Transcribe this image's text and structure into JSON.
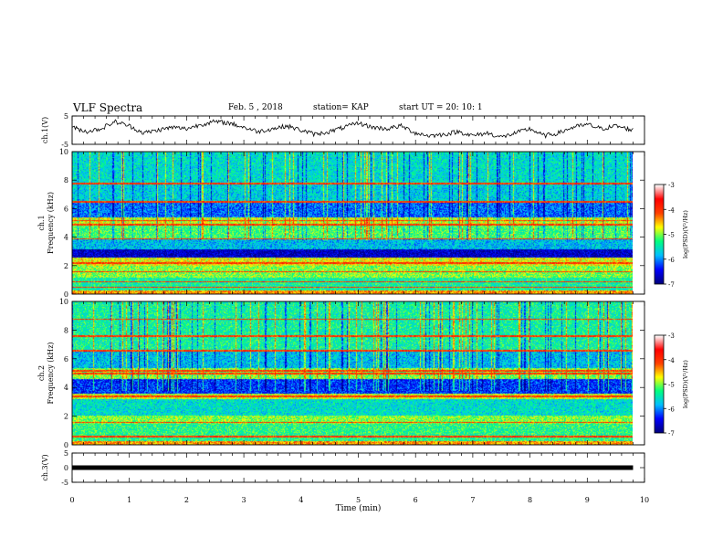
{
  "header": {
    "title": "VLF Spectra",
    "date": "Feb. 5 , 2018",
    "station": "station= KAP",
    "start": "start UT =  20: 10: 1"
  },
  "chart_data": [
    {
      "type": "line",
      "panel": "ch1-waveform",
      "ylabel": "ch.1(V)",
      "ylim": [
        -5,
        5
      ],
      "yticks": [
        5,
        -5
      ],
      "x_range_min": [
        0,
        10
      ],
      "data_extent_min": [
        0,
        9.8
      ],
      "series_color": "#000000",
      "series": [
        {
          "x": [
            0,
            0.25,
            0.5,
            0.75,
            1,
            1.25,
            1.5,
            1.75,
            2,
            2.25,
            2.5,
            2.75,
            3,
            3.25,
            3.5,
            3.75,
            4,
            4.25,
            4.5,
            4.75,
            5,
            5.25,
            5.5,
            5.75,
            6,
            6.25,
            6.5,
            6.75,
            7,
            7.25,
            7.5,
            7.75,
            8,
            8.25,
            8.5,
            8.75,
            9,
            9.25,
            9.5,
            9.8
          ],
          "y": [
            1.0,
            -0.5,
            0.5,
            3.0,
            1.5,
            -1.0,
            0.0,
            1.0,
            0.5,
            2.0,
            3.0,
            2.5,
            1.0,
            -0.5,
            0.5,
            1.5,
            0.0,
            -1.5,
            -0.5,
            1.0,
            2.5,
            1.0,
            0.5,
            1.5,
            -1.0,
            -2.0,
            -1.5,
            -0.5,
            -2.0,
            -1.0,
            -2.5,
            -1.0,
            0.5,
            -2.0,
            -1.0,
            1.0,
            2.0,
            0.5,
            1.5,
            0.0
          ]
        }
      ]
    },
    {
      "type": "heatmap",
      "panel": "ch1-spectrogram",
      "ylabel": "ch.1",
      "ylabel2": "Frequency (kHz)",
      "ylim": [
        0,
        10
      ],
      "yticks": [
        0,
        2,
        4,
        6,
        8,
        10
      ],
      "x_range_min": [
        0,
        10
      ],
      "data_extent_min": [
        0,
        9.8
      ],
      "colorbar": {
        "label": "log(PSD)(V²/Hz)",
        "range": [
          -7,
          -3
        ],
        "ticks": [
          -3,
          -4,
          -5,
          -6,
          -7
        ],
        "colors": [
          "#00007f",
          "#0000ff",
          "#00bfff",
          "#00ff80",
          "#ffff00",
          "#ff4000",
          "#ff0000",
          "#ffffff"
        ]
      },
      "bands": [
        {
          "f": [
            0.0,
            0.3
          ],
          "level": -4.4
        },
        {
          "f": [
            0.3,
            1.2
          ],
          "level": -5.4
        },
        {
          "f": [
            1.2,
            2.0
          ],
          "level": -5.0
        },
        {
          "f": [
            2.0,
            2.6
          ],
          "level": -4.7
        },
        {
          "f": [
            2.6,
            3.2
          ],
          "level": -6.7
        },
        {
          "f": [
            3.2,
            3.9
          ],
          "level": -5.8
        },
        {
          "f": [
            3.9,
            5.0
          ],
          "level": -5.2
        },
        {
          "f": [
            5.0,
            5.4
          ],
          "level": -4.8
        },
        {
          "f": [
            5.4,
            6.6
          ],
          "level": -6.1
        },
        {
          "f": [
            6.6,
            7.8
          ],
          "level": -5.7
        },
        {
          "f": [
            7.8,
            10.0
          ],
          "level": -5.6
        }
      ],
      "lines_khz": [
        0.5,
        0.9,
        1.6,
        2.2,
        3.9,
        4.9,
        5.2,
        6.5,
        7.8
      ]
    },
    {
      "type": "heatmap",
      "panel": "ch2-spectrogram",
      "ylabel": "ch.2",
      "ylabel2": "Frequency (kHz)",
      "ylim": [
        0,
        10
      ],
      "yticks": [
        0,
        2,
        4,
        6,
        8,
        10
      ],
      "x_range_min": [
        0,
        10
      ],
      "data_extent_min": [
        0,
        9.8
      ],
      "colorbar": {
        "label": "log(PSD)(V²/Hz)",
        "range": [
          -7,
          -3
        ],
        "ticks": [
          -3,
          -4,
          -5,
          -6,
          -7
        ],
        "colors": [
          "#00007f",
          "#0000ff",
          "#00bfff",
          "#00ff80",
          "#ffff00",
          "#ff4000",
          "#ff0000",
          "#ffffff"
        ]
      },
      "bands": [
        {
          "f": [
            0.0,
            0.3
          ],
          "level": -4.4
        },
        {
          "f": [
            0.3,
            1.5
          ],
          "level": -5.3
        },
        {
          "f": [
            1.5,
            2.1
          ],
          "level": -5.0
        },
        {
          "f": [
            2.1,
            3.2
          ],
          "level": -5.6
        },
        {
          "f": [
            3.2,
            3.6
          ],
          "level": -4.8
        },
        {
          "f": [
            3.6,
            4.6
          ],
          "level": -6.3
        },
        {
          "f": [
            4.6,
            5.4
          ],
          "level": -5.0
        },
        {
          "f": [
            5.4,
            6.6
          ],
          "level": -5.8
        },
        {
          "f": [
            6.6,
            10.0
          ],
          "level": -5.4
        }
      ],
      "lines_khz": [
        0.6,
        1.6,
        3.4,
        5.0,
        5.2,
        6.6,
        7.6,
        8.8
      ]
    },
    {
      "type": "line",
      "panel": "ch3-waveform",
      "ylabel": "ch.3(V)",
      "ylim": [
        -5,
        5
      ],
      "yticks": [
        5,
        0,
        -5
      ],
      "x_range_min": [
        0,
        10
      ],
      "xlabel": "Time (min)",
      "xticks": [
        0,
        1,
        2,
        3,
        4,
        5,
        6,
        7,
        8,
        9,
        10
      ],
      "series_color": "#000000",
      "series": [
        {
          "x": [
            0,
            9.8
          ],
          "y": [
            0,
            0
          ]
        }
      ]
    }
  ]
}
